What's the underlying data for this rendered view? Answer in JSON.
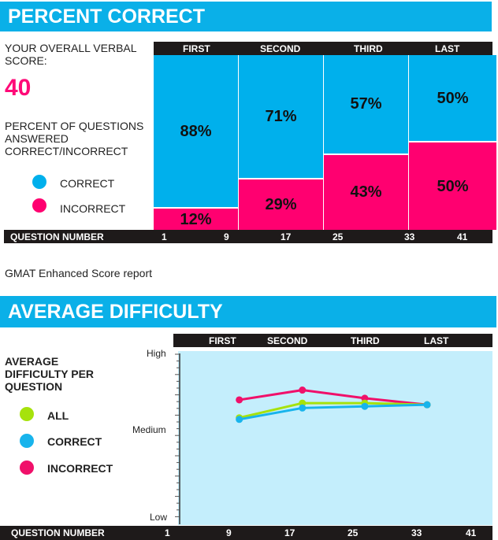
{
  "section1": {
    "title": "PERCENT CORRECT",
    "score_label": "YOUR OVERALL VERBAL SCORE:",
    "score": "40",
    "desc": "PERCENT OF QUESTIONS ANSWERED CORRECT/INCORRECT",
    "legend": [
      {
        "label": "CORRECT",
        "color": "#00b0ec"
      },
      {
        "label": "INCORRECT",
        "color": "#ff0070"
      }
    ]
  },
  "caption": "GMAT Enhanced Score report",
  "section2": {
    "title": "AVERAGE DIFFICULTY",
    "desc": "AVERAGE DIFFICULTY PER QUESTION",
    "legend": [
      {
        "label": "ALL",
        "color": "#a6e20c"
      },
      {
        "label": "CORRECT",
        "color": "#18b4ec"
      },
      {
        "label": "INCORRECT",
        "color": "#f0106a"
      }
    ]
  },
  "chart_data": [
    {
      "type": "bar",
      "title": "PERCENT CORRECT",
      "categories": [
        "FIRST",
        "SECOND",
        "THIRD",
        "LAST"
      ],
      "series": [
        {
          "name": "CORRECT",
          "values": [
            88,
            71,
            57,
            50
          ],
          "labels": [
            "88%",
            "71%",
            "57%",
            "50%"
          ]
        },
        {
          "name": "INCORRECT",
          "values": [
            12,
            29,
            43,
            50
          ],
          "labels": [
            "12%",
            "29%",
            "43%",
            "50%"
          ]
        }
      ],
      "xlabel": "QUESTION NUMBER",
      "xticks": [
        "1",
        "9",
        "17",
        "25",
        "33",
        "41"
      ],
      "stacked": true,
      "ylim": [
        0,
        100
      ]
    },
    {
      "type": "line",
      "title": "AVERAGE DIFFICULTY",
      "categories": [
        "FIRST",
        "SECOND",
        "THIRD",
        "LAST"
      ],
      "x": [
        10.5,
        18.8,
        27,
        35.2
      ],
      "series": [
        {
          "name": "ALL",
          "values": [
            0.61,
            0.7,
            0.7,
            0.69
          ]
        },
        {
          "name": "CORRECT",
          "values": [
            0.6,
            0.67,
            0.68,
            0.69
          ]
        },
        {
          "name": "INCORRECT",
          "values": [
            0.72,
            0.78,
            0.73,
            0.69
          ]
        }
      ],
      "xlabel": "QUESTION NUMBER",
      "xticks": [
        "1",
        "9",
        "17",
        "25",
        "33",
        "41"
      ],
      "yticks": [
        "High",
        "Medium",
        "Low"
      ],
      "ylim": [
        0,
        1
      ],
      "xlim": [
        1,
        41
      ]
    }
  ]
}
